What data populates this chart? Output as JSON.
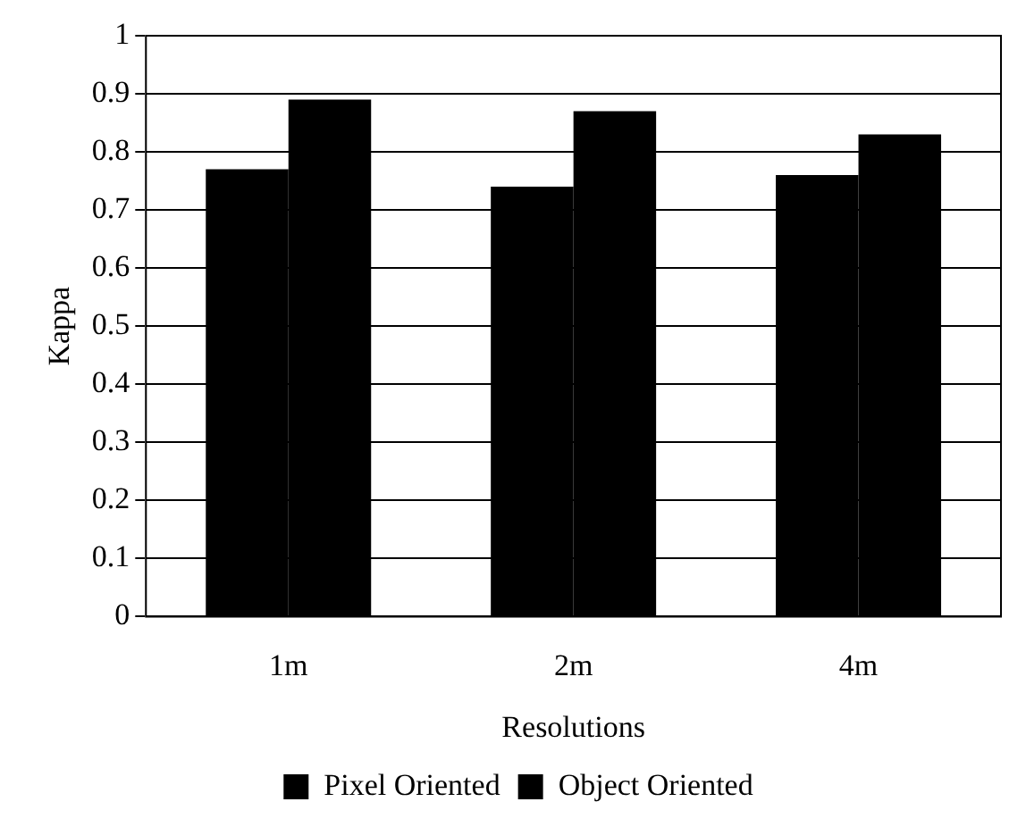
{
  "chart_data": {
    "type": "bar",
    "xlabel": "Resolutions",
    "ylabel": "Kappa",
    "categories": [
      "1m",
      "2m",
      "4m"
    ],
    "series": [
      {
        "name": "Pixel Oriented",
        "color": "#000000",
        "values": [
          0.77,
          0.74,
          0.76
        ]
      },
      {
        "name": "Object Oriented",
        "color": "#000000",
        "values": [
          0.89,
          0.87,
          0.83
        ]
      }
    ],
    "ylim": [
      0,
      1
    ],
    "yticks": [
      0,
      0.1,
      0.2,
      0.3,
      0.4,
      0.5,
      0.6,
      0.7,
      0.8,
      0.9,
      1
    ],
    "grid": "y",
    "legend": "bottom"
  }
}
